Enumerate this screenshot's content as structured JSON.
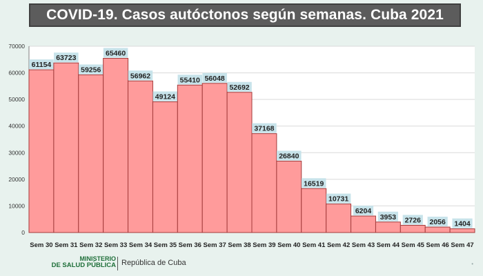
{
  "title": "COVID-19. Casos autóctonos según semanas. Cuba 2021",
  "footer": {
    "ministry_line1": "MINISTERIO",
    "ministry_line2": "DE SALUD PÚBLICA",
    "republic": "República de Cuba"
  },
  "colors": {
    "bar_fill": "#ff9b9b",
    "bar_stroke": "#a33b3b",
    "label_bg": "#c7e3ea",
    "title_bg": "#5c5c5c",
    "page_bg": "#e8f2ee"
  },
  "chart_data": {
    "type": "bar",
    "title": "COVID-19. Casos autóctonos según semanas. Cuba 2021",
    "xlabel": "",
    "ylabel": "",
    "ylim": [
      0,
      70000
    ],
    "yticks": [
      0,
      10000,
      20000,
      30000,
      40000,
      50000,
      60000,
      70000
    ],
    "grid": true,
    "legend": "none",
    "categories": [
      "Sem 30",
      "Sem 31",
      "Sem 32",
      "Sem 33",
      "Sem 34",
      "Sem 35",
      "Sem 36",
      "Sem 37",
      "Sem 38",
      "Sem 39",
      "Sem 40",
      "Sem 41",
      "Sem 42",
      "Sem 43",
      "Sem 44",
      "Sem 45",
      "Sem 46",
      "Sem 47"
    ],
    "values": [
      61154,
      63723,
      59256,
      65460,
      56962,
      49124,
      55410,
      56048,
      52692,
      37168,
      26840,
      16519,
      10731,
      6204,
      3953,
      2726,
      2056,
      1404
    ]
  }
}
